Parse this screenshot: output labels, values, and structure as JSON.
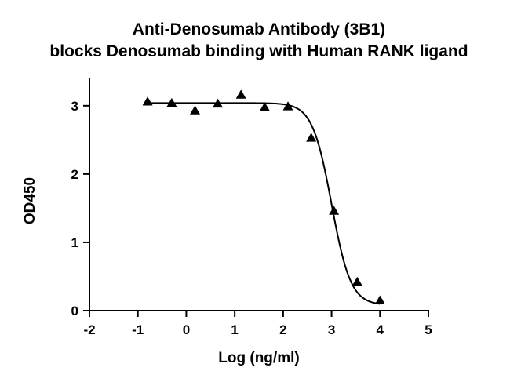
{
  "chart_data": {
    "type": "scatter",
    "title": "Anti-Denosumab Antibody (3B1)",
    "subtitle": "blocks Denosumab binding with Human RANK ligand",
    "xlabel": "Log (ng/ml)",
    "ylabel": "OD450",
    "xlim": [
      -2,
      5
    ],
    "ylim": [
      0,
      3.4
    ],
    "x_ticks": [
      "-2",
      "-1",
      "0",
      "1",
      "2",
      "3",
      "4",
      "5"
    ],
    "y_ticks": [
      "0",
      "1",
      "2",
      "3"
    ],
    "grid": false,
    "series": [
      {
        "marker": "triangle",
        "x": [
          -0.8,
          -0.3,
          0.18,
          0.65,
          1.13,
          1.62,
          2.1,
          2.58,
          3.05,
          3.53,
          4.0
        ],
        "y": [
          3.06,
          3.04,
          2.93,
          3.03,
          3.16,
          2.98,
          2.99,
          2.53,
          1.46,
          0.42,
          0.15
        ]
      }
    ],
    "fit_curve": {
      "model": "4PL",
      "top": 3.04,
      "bottom": 0.08,
      "logIC50": 3.0,
      "hill_slope": 2.2
    },
    "colors": {
      "marker": "#000000",
      "curve": "#000000",
      "axis": "#000000"
    }
  }
}
